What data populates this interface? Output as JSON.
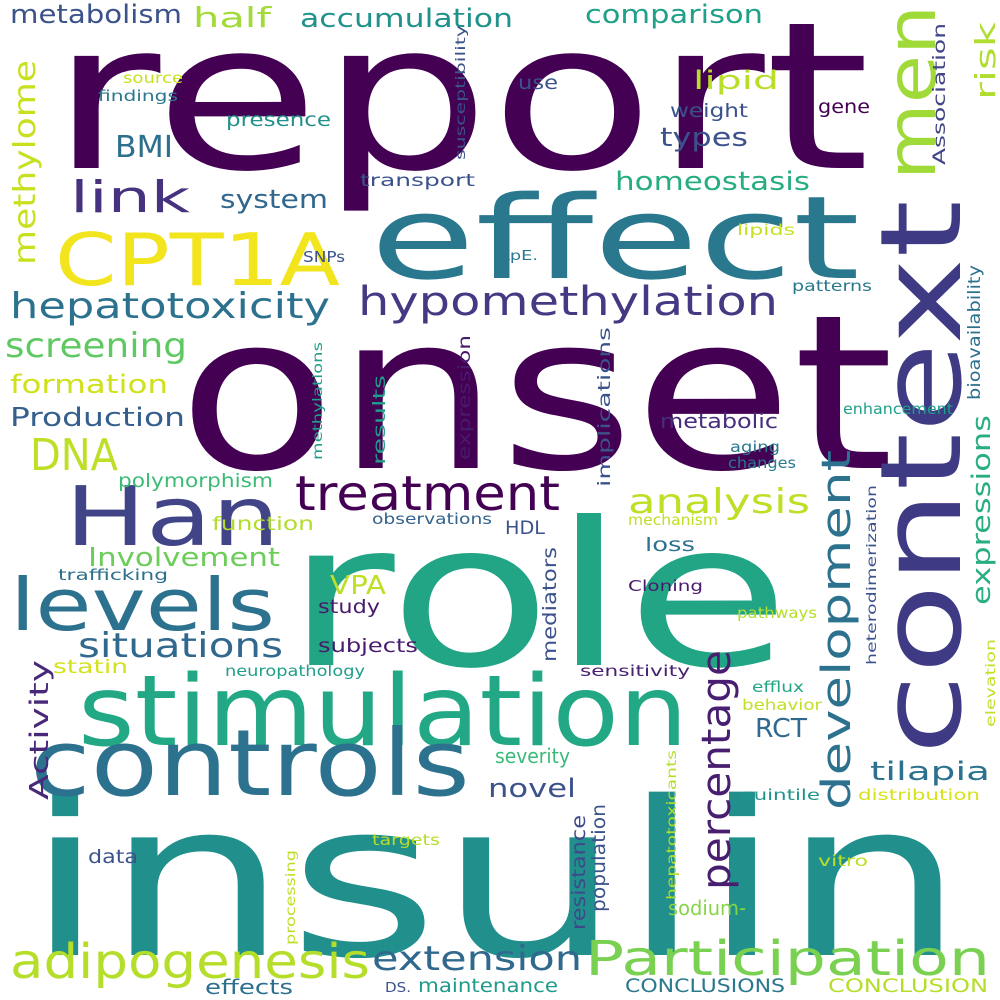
{
  "words": [
    {
      "text": "report",
      "color": "#440154"
    },
    {
      "text": "onset",
      "color": "#440154"
    },
    {
      "text": "role",
      "color": "#21a585"
    },
    {
      "text": "insulin",
      "color": "#21908d"
    },
    {
      "text": "effect",
      "color": "#2a788e"
    },
    {
      "text": "context",
      "color": "#3e3a84"
    },
    {
      "text": "stimulation",
      "color": "#22a884"
    },
    {
      "text": "controls",
      "color": "#2c728e"
    },
    {
      "text": "CPT1A",
      "color": "#f2e51d"
    },
    {
      "text": "Han",
      "color": "#414487"
    },
    {
      "text": "men",
      "color": "#a0da39"
    },
    {
      "text": "levels",
      "color": "#2c718e"
    },
    {
      "text": "treatment",
      "color": "#440154"
    },
    {
      "text": "Participation",
      "color": "#7ad151"
    },
    {
      "text": "adipogenesis",
      "color": "#b5de2b"
    },
    {
      "text": "hypomethylation",
      "color": "#443983"
    },
    {
      "text": "hepatotoxicity",
      "color": "#2c728e"
    },
    {
      "text": "development",
      "color": "#2c728e"
    },
    {
      "text": "percentage",
      "color": "#481f70"
    },
    {
      "text": "link",
      "color": "#46327e"
    },
    {
      "text": "DNA",
      "color": "#bddf26"
    },
    {
      "text": "situations",
      "color": "#31688e"
    },
    {
      "text": "extension",
      "color": "#31688e"
    },
    {
      "text": "analysis",
      "color": "#bddf26"
    },
    {
      "text": "screening",
      "color": "#5ec962"
    },
    {
      "text": "methylome",
      "color": "#c8e020"
    },
    {
      "text": "expressions",
      "color": "#29af7f"
    },
    {
      "text": "BMI",
      "color": "#2d708e"
    },
    {
      "text": "homeostasis",
      "color": "#26ad81"
    },
    {
      "text": "Production",
      "color": "#35608d"
    },
    {
      "text": "Involvement",
      "color": "#6ccd5a"
    },
    {
      "text": "formation",
      "color": "#d0e11c"
    },
    {
      "text": "accumulation",
      "color": "#21918c"
    },
    {
      "text": "comparison",
      "color": "#1fa088"
    },
    {
      "text": "metabolism",
      "color": "#3b528b"
    },
    {
      "text": "half",
      "color": "#a2da37"
    },
    {
      "text": "risk",
      "color": "#b0dd2f"
    },
    {
      "text": "types",
      "color": "#3b528b"
    },
    {
      "text": "lipid",
      "color": "#b8de29"
    },
    {
      "text": "system",
      "color": "#31678e"
    },
    {
      "text": "tilapia",
      "color": "#2c728e"
    },
    {
      "text": "Activity",
      "color": "#482878"
    },
    {
      "text": "VPA",
      "color": "#bddf26"
    },
    {
      "text": "RCT",
      "color": "#31688e"
    },
    {
      "text": "novel",
      "color": "#3b528b"
    },
    {
      "text": "metabolic",
      "color": "#472d7b"
    },
    {
      "text": "maintenance",
      "color": "#1e9b8a"
    },
    {
      "text": "CONCLUSIONS",
      "color": "#2a788e"
    },
    {
      "text": "CONCLUSION",
      "color": "#b5de2b"
    },
    {
      "text": "effects",
      "color": "#2d708e"
    },
    {
      "text": "DS.",
      "color": "#3b528b"
    },
    {
      "text": "severity",
      "color": "#3aba76"
    },
    {
      "text": "sodium-",
      "color": "#86d549"
    },
    {
      "text": "population",
      "color": "#3b528b"
    },
    {
      "text": "resistance",
      "color": "#3e4989"
    },
    {
      "text": "mediators",
      "color": "#3b528b"
    },
    {
      "text": "study",
      "color": "#481a6c"
    },
    {
      "text": "subjects",
      "color": "#481a6c"
    },
    {
      "text": "statin",
      "color": "#d2e21b"
    },
    {
      "text": "function",
      "color": "#b2dd2d"
    },
    {
      "text": "polymorphism",
      "color": "#3bbb75"
    },
    {
      "text": "trafficking",
      "color": "#2d708e"
    },
    {
      "text": "neuropathology",
      "color": "#1f9e89"
    },
    {
      "text": "observations",
      "color": "#33638d"
    },
    {
      "text": "HDL",
      "color": "#3b528b"
    },
    {
      "text": "loss",
      "color": "#2c728e"
    },
    {
      "text": "mechanism",
      "color": "#bddf26"
    },
    {
      "text": "Cloning",
      "color": "#481a6c"
    },
    {
      "text": "pathways",
      "color": "#b5de2b"
    },
    {
      "text": "sensitivity",
      "color": "#482173"
    },
    {
      "text": "efflux",
      "color": "#22a785"
    },
    {
      "text": "behavior",
      "color": "#c2df23"
    },
    {
      "text": "quintile",
      "color": "#1f948c"
    },
    {
      "text": "distribution",
      "color": "#d8e219"
    },
    {
      "text": "targets",
      "color": "#b5de2b"
    },
    {
      "text": "vitro",
      "color": "#bddf26"
    },
    {
      "text": "processing",
      "color": "#bddf26"
    },
    {
      "text": "data",
      "color": "#3b528b"
    },
    {
      "text": "hepatotoxicants",
      "color": "#b5de2b"
    },
    {
      "text": "heterodimerization",
      "color": "#3b528b"
    },
    {
      "text": "elevation",
      "color": "#c2df23"
    },
    {
      "text": "aging",
      "color": "#2a788e"
    },
    {
      "text": "changes",
      "color": "#2a788e"
    },
    {
      "text": "enhancement",
      "color": "#1f9e89"
    },
    {
      "text": "bioavailability",
      "color": "#2d708e"
    },
    {
      "text": "patterns",
      "color": "#2a788e"
    },
    {
      "text": "lipids",
      "color": "#c8e020"
    },
    {
      "text": "LpE.",
      "color": "#2a788e"
    },
    {
      "text": "gene",
      "color": "#440154"
    },
    {
      "text": "weight",
      "color": "#3b528b"
    },
    {
      "text": "use",
      "color": "#3b528b"
    },
    {
      "text": "presence",
      "color": "#21918c"
    },
    {
      "text": "transport",
      "color": "#3b528b"
    },
    {
      "text": "SNPs",
      "color": "#3b528b"
    },
    {
      "text": "susceptibility",
      "color": "#3b528b"
    },
    {
      "text": "Association",
      "color": "#414487"
    },
    {
      "text": "source",
      "color": "#c8e020"
    },
    {
      "text": "findings",
      "color": "#2a788e"
    },
    {
      "text": "expression",
      "color": "#481a6c"
    },
    {
      "text": "implications",
      "color": "#3b528b"
    },
    {
      "text": "results",
      "color": "#1f9e89"
    },
    {
      "text": "methylations",
      "color": "#1f9e89"
    }
  ]
}
